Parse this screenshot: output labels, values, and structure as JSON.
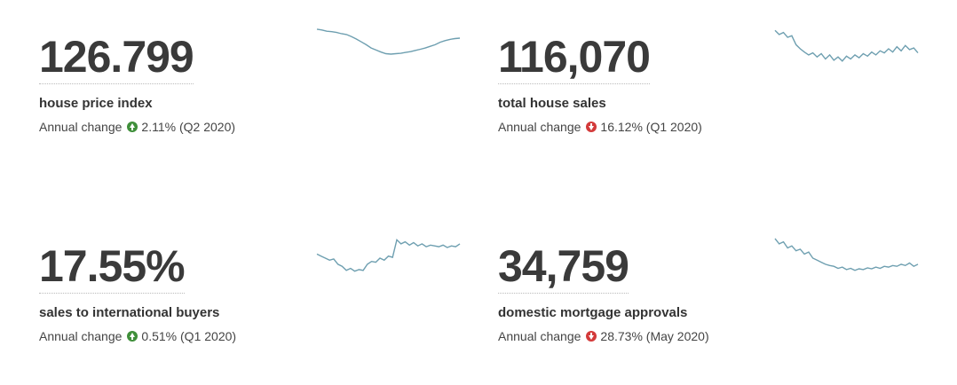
{
  "cards": [
    {
      "value": "126.799",
      "label": "house price index",
      "change_label": "Annual change",
      "change_direction": "up",
      "change_value": "2.11%",
      "change_period": "(Q2 2020)",
      "sparkline": [
        0.98,
        0.96,
        0.93,
        0.92,
        0.9,
        0.87,
        0.85,
        0.8,
        0.74,
        0.67,
        0.6,
        0.52,
        0.47,
        0.42,
        0.38,
        0.37,
        0.38,
        0.39,
        0.41,
        0.43,
        0.46,
        0.49,
        0.52,
        0.56,
        0.6,
        0.66,
        0.7,
        0.73,
        0.75,
        0.76
      ]
    },
    {
      "value": "116,070",
      "label": "total house sales",
      "change_label": "Annual change",
      "change_direction": "down",
      "change_value": "16.12%",
      "change_period": "(Q1 2020)",
      "sparkline": [
        0.95,
        0.85,
        0.9,
        0.78,
        0.82,
        0.6,
        0.5,
        0.42,
        0.35,
        0.4,
        0.3,
        0.38,
        0.25,
        0.35,
        0.22,
        0.3,
        0.2,
        0.32,
        0.25,
        0.35,
        0.28,
        0.38,
        0.32,
        0.42,
        0.35,
        0.45,
        0.4,
        0.5,
        0.42,
        0.55,
        0.45,
        0.58,
        0.48,
        0.52,
        0.4
      ]
    },
    {
      "value": "17.55%",
      "label": "sales to international buyers",
      "change_label": "Annual change",
      "change_direction": "up",
      "change_value": "0.51%",
      "change_period": "(Q1 2020)",
      "sparkline": [
        0.6,
        0.55,
        0.5,
        0.45,
        0.48,
        0.35,
        0.3,
        0.2,
        0.25,
        0.18,
        0.22,
        0.2,
        0.35,
        0.42,
        0.4,
        0.5,
        0.45,
        0.55,
        0.52,
        0.95,
        0.85,
        0.9,
        0.82,
        0.88,
        0.8,
        0.85,
        0.78,
        0.82,
        0.8,
        0.78,
        0.82,
        0.76,
        0.8,
        0.78,
        0.85
      ]
    },
    {
      "value": "34,759",
      "label": "domestic mortgage approvals",
      "change_label": "Annual change",
      "change_direction": "down",
      "change_value": "28.73%",
      "change_period": "(May 2020)",
      "sparkline": [
        0.98,
        0.85,
        0.9,
        0.75,
        0.8,
        0.68,
        0.72,
        0.6,
        0.65,
        0.5,
        0.45,
        0.4,
        0.35,
        0.32,
        0.3,
        0.25,
        0.28,
        0.22,
        0.25,
        0.2,
        0.24,
        0.22,
        0.26,
        0.24,
        0.28,
        0.25,
        0.3,
        0.28,
        0.32,
        0.3,
        0.35,
        0.32,
        0.38,
        0.3,
        0.35
      ]
    }
  ]
}
